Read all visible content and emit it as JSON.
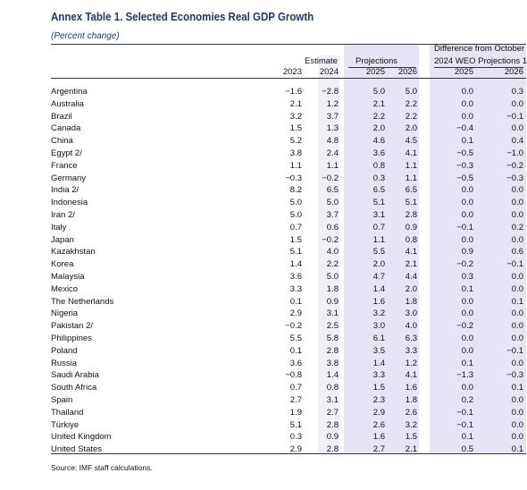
{
  "title": "Annex Table 1. Selected Economies Real GDP Growth",
  "subtitle": "(Percent change)",
  "headers": {
    "estimate": "Estimate",
    "projections": "Projections",
    "difference_line1": "Difference from October",
    "difference_line2": "2024 WEO Projections 1/",
    "y2023": "2023",
    "y2024": "2024",
    "y2025": "2025",
    "y2026": "2026",
    "d2025": "2025",
    "d2026": "2026"
  },
  "rows": [
    {
      "name": "Argentina",
      "y2023": "−1.6",
      "y2024": "−2.8",
      "y2025": "5.0",
      "y2026": "5.0",
      "d2025": "0.0",
      "d2026": "0.3"
    },
    {
      "name": "Australia",
      "y2023": "2.1",
      "y2024": "1.2",
      "y2025": "2.1",
      "y2026": "2.2",
      "d2025": "0.0",
      "d2026": "0.0"
    },
    {
      "name": "Brazil",
      "y2023": "3.2",
      "y2024": "3.7",
      "y2025": "2.2",
      "y2026": "2.2",
      "d2025": "0.0",
      "d2026": "−0.1"
    },
    {
      "name": "Canada",
      "y2023": "1.5",
      "y2024": "1.3",
      "y2025": "2.0",
      "y2026": "2.0",
      "d2025": "−0.4",
      "d2026": "0.0"
    },
    {
      "name": "China",
      "y2023": "5.2",
      "y2024": "4.8",
      "y2025": "4.6",
      "y2026": "4.5",
      "d2025": "0.1",
      "d2026": "0.4"
    },
    {
      "name": "Egypt 2/",
      "y2023": "3.8",
      "y2024": "2.4",
      "y2025": "3.6",
      "y2026": "4.1",
      "d2025": "−0.5",
      "d2026": "−1.0"
    },
    {
      "name": "France",
      "y2023": "1.1",
      "y2024": "1.1",
      "y2025": "0.8",
      "y2026": "1.1",
      "d2025": "−0.3",
      "d2026": "−0.2"
    },
    {
      "name": "Germany",
      "y2023": "−0.3",
      "y2024": "−0.2",
      "y2025": "0.3",
      "y2026": "1.1",
      "d2025": "−0.5",
      "d2026": "−0.3"
    },
    {
      "name": "India 2/",
      "y2023": "8.2",
      "y2024": "6.5",
      "y2025": "6.5",
      "y2026": "6.5",
      "d2025": "0.0",
      "d2026": "0.0"
    },
    {
      "name": "Indonesia",
      "y2023": "5.0",
      "y2024": "5.0",
      "y2025": "5.1",
      "y2026": "5.1",
      "d2025": "0.0",
      "d2026": "0.0"
    },
    {
      "name": "Iran 2/",
      "y2023": "5.0",
      "y2024": "3.7",
      "y2025": "3.1",
      "y2026": "2.8",
      "d2025": "0.0",
      "d2026": "0.0"
    },
    {
      "name": "Italy",
      "y2023": "0.7",
      "y2024": "0.6",
      "y2025": "0.7",
      "y2026": "0.9",
      "d2025": "−0.1",
      "d2026": "0.2"
    },
    {
      "name": "Japan",
      "y2023": "1.5",
      "y2024": "−0.2",
      "y2025": "1.1",
      "y2026": "0.8",
      "d2025": "0.0",
      "d2026": "0.0"
    },
    {
      "name": "Kazakhstan",
      "y2023": "5.1",
      "y2024": "4.0",
      "y2025": "5.5",
      "y2026": "4.1",
      "d2025": "0.9",
      "d2026": "0.6"
    },
    {
      "name": "Korea",
      "y2023": "1.4",
      "y2024": "2.2",
      "y2025": "2.0",
      "y2026": "2.1",
      "d2025": "−0.2",
      "d2026": "−0.1"
    },
    {
      "name": "Malaysia",
      "y2023": "3.6",
      "y2024": "5.0",
      "y2025": "4.7",
      "y2026": "4.4",
      "d2025": "0.3",
      "d2026": "0.0"
    },
    {
      "name": "Mexico",
      "y2023": "3.3",
      "y2024": "1.8",
      "y2025": "1.4",
      "y2026": "2.0",
      "d2025": "0.1",
      "d2026": "0.0"
    },
    {
      "name": "The Netherlands",
      "y2023": "0.1",
      "y2024": "0.9",
      "y2025": "1.6",
      "y2026": "1.8",
      "d2025": "0.0",
      "d2026": "0.1"
    },
    {
      "name": "Nigeria",
      "y2023": "2.9",
      "y2024": "3.1",
      "y2025": "3.2",
      "y2026": "3.0",
      "d2025": "0.0",
      "d2026": "0.0"
    },
    {
      "name": "Pakistan 2/",
      "y2023": "−0.2",
      "y2024": "2.5",
      "y2025": "3.0",
      "y2026": "4.0",
      "d2025": "−0.2",
      "d2026": "0.0"
    },
    {
      "name": "Philippines",
      "y2023": "5.5",
      "y2024": "5.8",
      "y2025": "6.1",
      "y2026": "6.3",
      "d2025": "0.0",
      "d2026": "0.0"
    },
    {
      "name": "Poland",
      "y2023": "0.1",
      "y2024": "2.8",
      "y2025": "3.5",
      "y2026": "3.3",
      "d2025": "0.0",
      "d2026": "−0.1"
    },
    {
      "name": "Russia",
      "y2023": "3.6",
      "y2024": "3.8",
      "y2025": "1.4",
      "y2026": "1.2",
      "d2025": "0.1",
      "d2026": "0.0"
    },
    {
      "name": "Saudi Arabia",
      "y2023": "−0.8",
      "y2024": "1.4",
      "y2025": "3.3",
      "y2026": "4.1",
      "d2025": "−1.3",
      "d2026": "−0.3"
    },
    {
      "name": "South Africa",
      "y2023": "0.7",
      "y2024": "0.8",
      "y2025": "1.5",
      "y2026": "1.6",
      "d2025": "0.0",
      "d2026": "0.1"
    },
    {
      "name": "Spain",
      "y2023": "2.7",
      "y2024": "3.1",
      "y2025": "2.3",
      "y2026": "1.8",
      "d2025": "0.2",
      "d2026": "0.0"
    },
    {
      "name": "Thailand",
      "y2023": "1.9",
      "y2024": "2.7",
      "y2025": "2.9",
      "y2026": "2.6",
      "d2025": "−0.1",
      "d2026": "0.0"
    },
    {
      "name": "Türkiye",
      "y2023": "5.1",
      "y2024": "2.8",
      "y2025": "2.6",
      "y2026": "3.2",
      "d2025": "−0.1",
      "d2026": "0.0"
    },
    {
      "name": "United Kingdom",
      "y2023": "0.3",
      "y2024": "0.9",
      "y2025": "1.6",
      "y2026": "1.5",
      "d2025": "0.1",
      "d2026": "0.0"
    },
    {
      "name": "United States",
      "y2023": "2.9",
      "y2024": "2.8",
      "y2025": "2.7",
      "y2026": "2.1",
      "d2025": "0.5",
      "d2026": "0.1"
    }
  ],
  "source": "Source: IMF staff calculations."
}
